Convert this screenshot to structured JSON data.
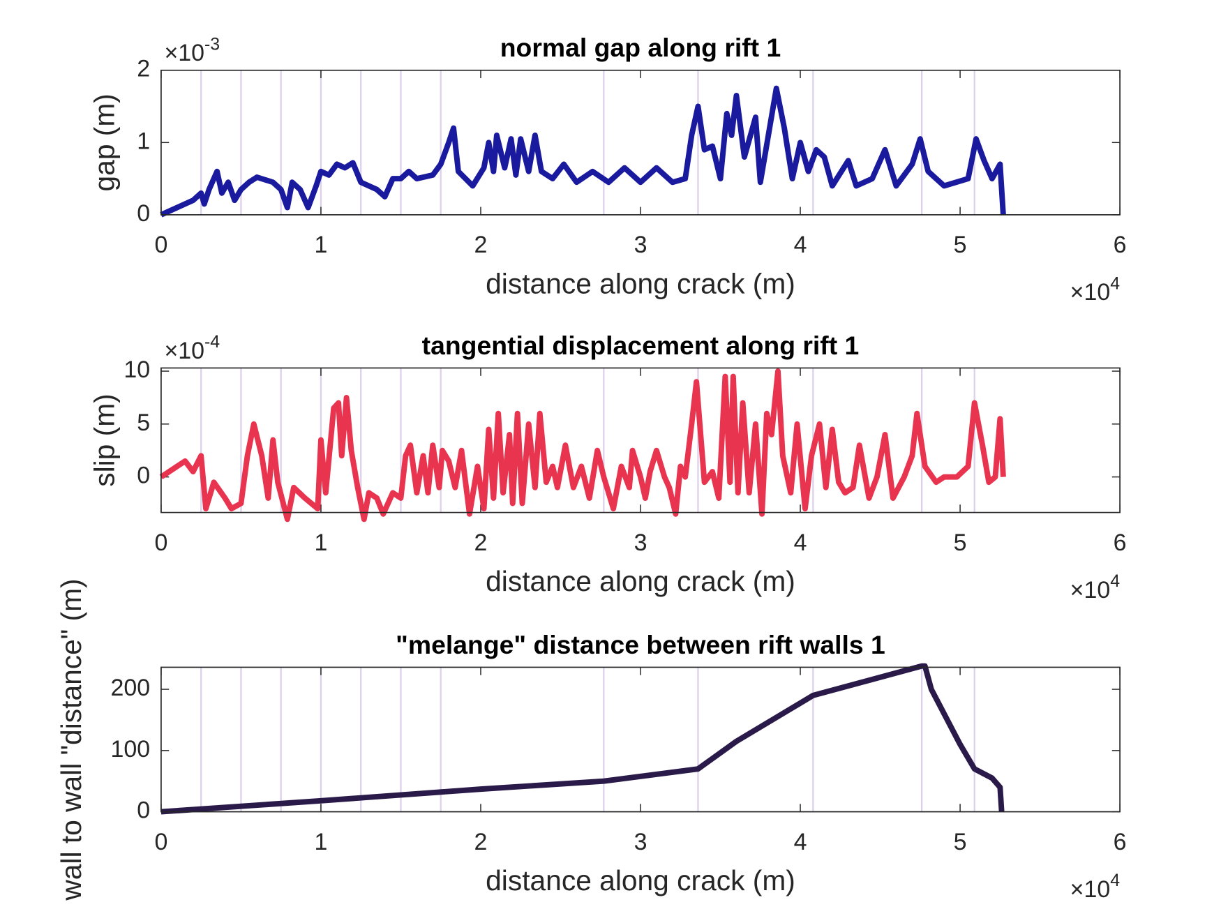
{
  "chart_data": [
    {
      "type": "line",
      "title": "normal gap along rift 1",
      "xlabel": "distance along crack (m)",
      "ylabel": "gap (m)",
      "x_multiplier": {
        "base": "×10",
        "exponent": "4"
      },
      "y_multiplier": {
        "base": "×10",
        "exponent": "-3"
      },
      "xlim": [
        0,
        60000
      ],
      "ylim": [
        0,
        0.002
      ],
      "xticks": [
        {
          "value": 0,
          "label": "0"
        },
        {
          "value": 10000,
          "label": "1"
        },
        {
          "value": 20000,
          "label": "2"
        },
        {
          "value": 30000,
          "label": "3"
        },
        {
          "value": 40000,
          "label": "4"
        },
        {
          "value": 50000,
          "label": "5"
        },
        {
          "value": 60000,
          "label": "6"
        }
      ],
      "yticks": [
        {
          "value": 0,
          "label": "0"
        },
        {
          "value": 0.001,
          "label": "1"
        },
        {
          "value": 0.002,
          "label": "2"
        }
      ],
      "vlines": [
        2500,
        5000,
        7500,
        10000,
        12500,
        15000,
        17500,
        27700,
        33600,
        40800,
        47600,
        50900
      ],
      "vline_color": "#dcd0ec",
      "color": "#1a1a9e",
      "x": [
        0,
        1000,
        2000,
        2500,
        2700,
        3000,
        3500,
        3800,
        4200,
        4600,
        5000,
        5500,
        6000,
        7000,
        7500,
        7900,
        8200,
        8700,
        9200,
        9700,
        10000,
        10500,
        11000,
        11500,
        12000,
        12500,
        13000,
        13500,
        14000,
        14500,
        15000,
        15500,
        16000,
        17000,
        17500,
        18000,
        18300,
        18600,
        19500,
        20200,
        20500,
        20800,
        21000,
        21500,
        21900,
        22200,
        22500,
        23000,
        23400,
        23800,
        24500,
        25200,
        26000,
        27000,
        28000,
        29000,
        30000,
        31000,
        32000,
        32800,
        33200,
        33600,
        34000,
        34500,
        35000,
        35400,
        35700,
        36000,
        36500,
        37200,
        37500,
        38000,
        38500,
        39000,
        39500,
        40000,
        40500,
        41000,
        41500,
        42000,
        43000,
        43500,
        44500,
        45300,
        46000,
        47000,
        47500,
        48000,
        49000,
        50500,
        51000,
        51500,
        52000,
        52500,
        52700
      ],
      "values": [
        0,
        0.0001,
        0.0002,
        0.0003,
        0.00015,
        0.00035,
        0.0006,
        0.0003,
        0.00045,
        0.0002,
        0.00035,
        0.00045,
        0.00052,
        0.00045,
        0.00035,
        0.0001,
        0.00045,
        0.00035,
        0.0001,
        0.0004,
        0.0006,
        0.00055,
        0.0007,
        0.00065,
        0.00072,
        0.00045,
        0.0004,
        0.00035,
        0.00025,
        0.0005,
        0.0005,
        0.0006,
        0.0005,
        0.00055,
        0.0007,
        0.001,
        0.0012,
        0.0006,
        0.0004,
        0.00065,
        0.001,
        0.0006,
        0.0011,
        0.00065,
        0.00105,
        0.00055,
        0.00105,
        0.0006,
        0.0011,
        0.0006,
        0.0005,
        0.0007,
        0.00045,
        0.0006,
        0.00045,
        0.00065,
        0.00045,
        0.00065,
        0.00045,
        0.0005,
        0.0011,
        0.0015,
        0.0009,
        0.00095,
        0.0005,
        0.0014,
        0.0011,
        0.00165,
        0.0008,
        0.00135,
        0.00045,
        0.0011,
        0.00175,
        0.0012,
        0.0005,
        0.001,
        0.0006,
        0.0009,
        0.0008,
        0.0004,
        0.00075,
        0.0004,
        0.0005,
        0.0009,
        0.0004,
        0.0007,
        0.00105,
        0.0006,
        0.0004,
        0.0005,
        0.00105,
        0.00075,
        0.0005,
        0.0007,
        0
      ]
    },
    {
      "type": "line",
      "title": "tangential displacement along rift 1",
      "xlabel": "distance along crack (m)",
      "ylabel": "slip (m)",
      "x_multiplier": {
        "base": "×10",
        "exponent": "4"
      },
      "y_multiplier": {
        "base": "×10",
        "exponent": "-4"
      },
      "xlim": [
        0,
        60000
      ],
      "ylim": [
        -0.000336,
        0.00103
      ],
      "xticks": [
        {
          "value": 0,
          "label": "0"
        },
        {
          "value": 10000,
          "label": "1"
        },
        {
          "value": 20000,
          "label": "2"
        },
        {
          "value": 30000,
          "label": "3"
        },
        {
          "value": 40000,
          "label": "4"
        },
        {
          "value": 50000,
          "label": "5"
        },
        {
          "value": 60000,
          "label": "6"
        }
      ],
      "yticks": [
        {
          "value": 0,
          "label": "0"
        },
        {
          "value": 0.0005,
          "label": "5"
        },
        {
          "value": 0.001,
          "label": "10"
        }
      ],
      "vlines": [
        2500,
        5000,
        7500,
        10000,
        12500,
        15000,
        17500,
        27700,
        33600,
        40800,
        47600,
        50900
      ],
      "vline_color": "#dcd0ec",
      "color": "#e8344e",
      "x": [
        0,
        1000,
        1500,
        2000,
        2500,
        2800,
        3300,
        4000,
        4400,
        5000,
        5400,
        5800,
        6300,
        6700,
        7000,
        7300,
        7900,
        8300,
        9000,
        9400,
        9800,
        10000,
        10300,
        10800,
        11100,
        11300,
        11600,
        11900,
        12300,
        12700,
        13000,
        13500,
        13900,
        14500,
        15000,
        15300,
        15600,
        16000,
        16400,
        16700,
        17000,
        17400,
        17600,
        18000,
        18400,
        18800,
        19300,
        19800,
        20200,
        20500,
        20800,
        21100,
        21400,
        21800,
        22000,
        22300,
        22600,
        23000,
        23400,
        23700,
        24100,
        24500,
        24800,
        25300,
        25800,
        26300,
        26800,
        27300,
        27700,
        28300,
        28800,
        29300,
        29500,
        30000,
        30300,
        30600,
        31000,
        31500,
        31800,
        32200,
        32500,
        32800,
        33200,
        33500,
        34000,
        34500,
        34900,
        35300,
        35600,
        35800,
        36100,
        36400,
        36800,
        37200,
        37600,
        37900,
        38200,
        38600,
        38900,
        39400,
        39800,
        40300,
        40700,
        41200,
        41600,
        42000,
        42400,
        42800,
        43300,
        43700,
        44300,
        44800,
        45300,
        45800,
        46500,
        47000,
        47300,
        47800,
        48500,
        49000,
        49800,
        50500,
        50900,
        51400,
        51800,
        52200,
        52500,
        52700
      ],
      "values": [
        0,
        0.0001,
        0.00015,
        5e-05,
        0.0002,
        -0.0003,
        -5e-05,
        -0.0002,
        -0.0003,
        -0.00025,
        0.0002,
        0.0005,
        0.0002,
        -0.0002,
        0.00035,
        -5e-05,
        -0.0004,
        -0.0001,
        -0.0002,
        -0.00025,
        -0.0003,
        0.00035,
        -0.00015,
        0.00065,
        0.0007,
        0.0002,
        0.00075,
        0.00025,
        -0.0001,
        -0.0004,
        -0.00015,
        -0.0002,
        -0.00035,
        -0.00015,
        -0.0002,
        0.0002,
        0.0003,
        -0.00015,
        0.0002,
        -0.00015,
        0.0003,
        -0.0001,
        0.00025,
        0.00015,
        -0.0001,
        0.00025,
        -0.00035,
        0.0001,
        -0.0003,
        0.00045,
        -0.0002,
        0.0006,
        -0.00015,
        0.0004,
        -0.00025,
        0.0006,
        -0.00025,
        0.0005,
        -0.0001,
        0.0006,
        -5e-05,
        0.0001,
        -0.0001,
        0.0003,
        -0.0001,
        0.0001,
        -0.0002,
        0.00025,
        0,
        -0.0003,
        0.0001,
        -0.0001,
        0.00025,
        0,
        -0.0002,
        5e-05,
        0.00025,
        0,
        -0.0001,
        -0.00035,
        0.0001,
        0,
        0.0005,
        0.0009,
        -5e-05,
        5e-05,
        -0.0002,
        0.00095,
        -5e-05,
        0.00095,
        -0.00015,
        0.0007,
        -0.00015,
        0.0005,
        -0.00035,
        0.0006,
        0.0004,
        0.001,
        0.0002,
        -0.00015,
        0.0005,
        -0.0003,
        0.0002,
        0.0005,
        -0.0001,
        0.00045,
        -5e-05,
        -0.00015,
        -0.0001,
        0.0003,
        -0.0002,
        0,
        0.0004,
        -0.0002,
        0,
        0.0002,
        0.0006,
        0.0001,
        -5e-05,
        0,
        0,
        0.0001,
        0.0007,
        0.0003,
        -5e-05,
        0,
        0.00055,
        0
      ]
    },
    {
      "type": "line",
      "title": "\"melange\" distance between rift walls 1",
      "xlabel": "distance along crack (m)",
      "ylabel": "wall to wall \"distance\" (m)",
      "x_multiplier": {
        "base": "×10",
        "exponent": "4"
      },
      "xlim": [
        0,
        60000
      ],
      "ylim": [
        0,
        236
      ],
      "xticks": [
        {
          "value": 0,
          "label": "0"
        },
        {
          "value": 10000,
          "label": "1"
        },
        {
          "value": 20000,
          "label": "2"
        },
        {
          "value": 30000,
          "label": "3"
        },
        {
          "value": 40000,
          "label": "4"
        },
        {
          "value": 50000,
          "label": "5"
        },
        {
          "value": 60000,
          "label": "6"
        }
      ],
      "yticks": [
        0,
        100,
        200
      ],
      "vlines": [
        2500,
        5000,
        7500,
        10000,
        12500,
        15000,
        17500,
        27700,
        33600,
        40800,
        47600,
        50900
      ],
      "vline_color": "#dcd0ec",
      "color": "#2a1a4a",
      "x": [
        0,
        10000,
        20000,
        27700,
        33600,
        36000,
        40800,
        47600,
        47800,
        48200,
        49000,
        50000,
        50900,
        52000,
        52500,
        52600
      ],
      "values": [
        0,
        18,
        37,
        50,
        70,
        115,
        190,
        238,
        238,
        200,
        160,
        110,
        70,
        55,
        40,
        0
      ]
    }
  ]
}
